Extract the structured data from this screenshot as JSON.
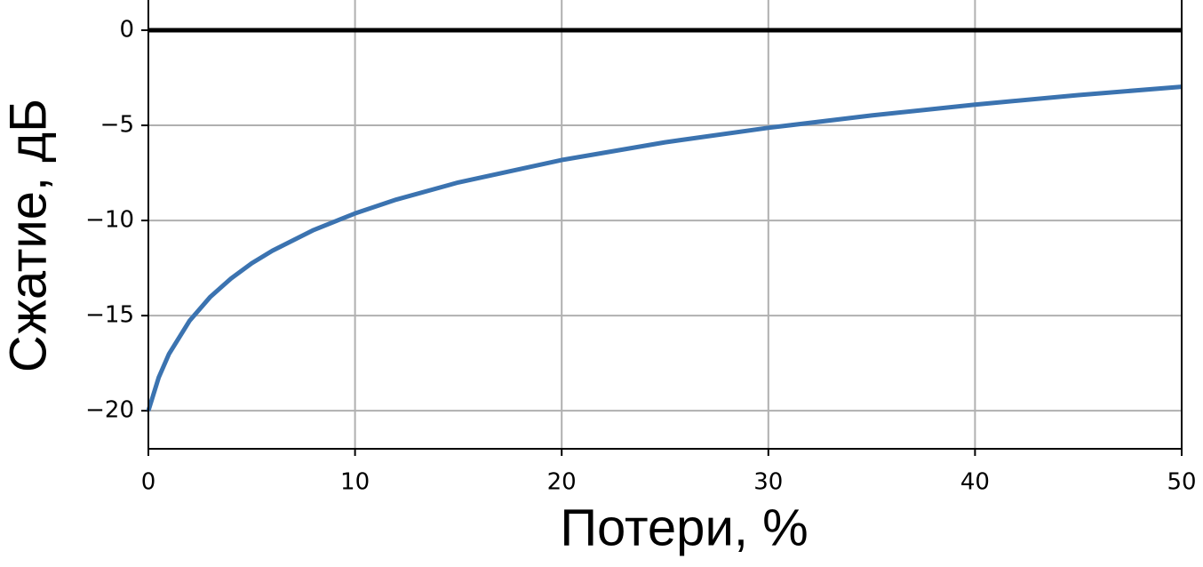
{
  "chart_data": {
    "type": "line",
    "x_label": "Потери, %",
    "y_label": "Сжатие, дБ",
    "x": [
      0,
      0.5,
      1,
      2,
      3,
      4,
      5,
      6,
      8,
      10,
      12,
      15,
      20,
      25,
      30,
      35,
      40,
      45,
      50
    ],
    "series": [
      {
        "color": "#3b73b0",
        "values": [
          -20,
          -18.25,
          -17.01,
          -15.26,
          -14.01,
          -13.05,
          -12.25,
          -11.59,
          -10.5,
          -9.63,
          -8.9,
          -8.0,
          -6.82,
          -5.89,
          -5.13,
          -4.48,
          -3.91,
          -3.41,
          -2.97
        ]
      }
    ],
    "xlim": [
      0,
      50
    ],
    "ylim": [
      -22,
      1.6
    ],
    "xticks": [
      0,
      10,
      20,
      30,
      40,
      50
    ],
    "yticks": [
      {
        "value": 0,
        "label": "0"
      },
      {
        "value": -5,
        "label": "−5"
      },
      {
        "value": -10,
        "label": "−10"
      },
      {
        "value": -15,
        "label": "−15"
      },
      {
        "value": -20,
        "label": "−20"
      }
    ],
    "hline": 0,
    "grid": true
  }
}
